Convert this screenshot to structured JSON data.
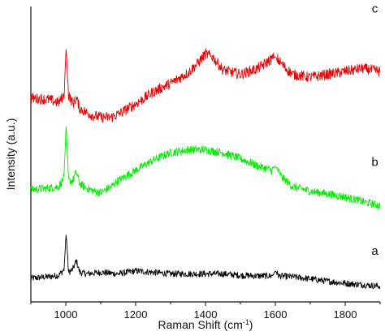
{
  "chart_data": {
    "type": "line",
    "xlabel": "Raman Shift (cm",
    "xlabel_sup": "-1",
    "xlabel_end": ")",
    "ylabel": "Intensity (a.u.)",
    "xlim": [
      900,
      1900
    ],
    "ylim": [
      0,
      100
    ],
    "x_ticks": [
      1000,
      1200,
      1400,
      1600,
      1800
    ],
    "x_tick_labels": [
      "1000",
      "1200",
      "1400",
      "1600",
      "1800"
    ],
    "y_ticks_shown": false,
    "grid": false,
    "legend": "none",
    "series": [
      {
        "name": "a",
        "color": "#000000",
        "points": [
          [
            900,
            8
          ],
          [
            950,
            8.5
          ],
          [
            980,
            9
          ],
          [
            995,
            11
          ],
          [
            1001,
            23
          ],
          [
            1008,
            10
          ],
          [
            1020,
            11
          ],
          [
            1030,
            14
          ],
          [
            1040,
            10
          ],
          [
            1060,
            9.5
          ],
          [
            1100,
            10
          ],
          [
            1150,
            9.5
          ],
          [
            1200,
            10.5
          ],
          [
            1250,
            10
          ],
          [
            1300,
            9.5
          ],
          [
            1350,
            9.5
          ],
          [
            1400,
            9.5
          ],
          [
            1450,
            9.5
          ],
          [
            1500,
            9
          ],
          [
            1550,
            8.8
          ],
          [
            1590,
            8.8
          ],
          [
            1600,
            10.5
          ],
          [
            1610,
            8.8
          ],
          [
            1650,
            8.5
          ],
          [
            1700,
            7.8
          ],
          [
            1750,
            7
          ],
          [
            1800,
            6.3
          ],
          [
            1850,
            5.8
          ],
          [
            1900,
            5.3
          ]
        ]
      },
      {
        "name": "b",
        "color": "#00ee00",
        "points": [
          [
            900,
            38
          ],
          [
            950,
            38.5
          ],
          [
            980,
            39
          ],
          [
            995,
            42
          ],
          [
            1001,
            60
          ],
          [
            1008,
            41
          ],
          [
            1020,
            41
          ],
          [
            1030,
            44
          ],
          [
            1040,
            40
          ],
          [
            1060,
            38.5
          ],
          [
            1080,
            37.5
          ],
          [
            1100,
            37
          ],
          [
            1130,
            39
          ],
          [
            1150,
            41
          ],
          [
            1200,
            44.5
          ],
          [
            1250,
            48
          ],
          [
            1300,
            50.5
          ],
          [
            1350,
            51.5
          ],
          [
            1400,
            51.5
          ],
          [
            1450,
            50.5
          ],
          [
            1500,
            48.5
          ],
          [
            1550,
            46
          ],
          [
            1590,
            44.5
          ],
          [
            1600,
            46
          ],
          [
            1620,
            42
          ],
          [
            1650,
            39
          ],
          [
            1700,
            37.5
          ],
          [
            1750,
            36.5
          ],
          [
            1800,
            35.5
          ],
          [
            1850,
            34
          ],
          [
            1900,
            32.5
          ]
        ]
      },
      {
        "name": "c",
        "color": "#ee0000",
        "points": [
          [
            900,
            69
          ],
          [
            950,
            68.5
          ],
          [
            980,
            67.5
          ],
          [
            995,
            70
          ],
          [
            1001,
            86
          ],
          [
            1008,
            70
          ],
          [
            1020,
            67
          ],
          [
            1030,
            69
          ],
          [
            1040,
            65.5
          ],
          [
            1060,
            64
          ],
          [
            1080,
            63
          ],
          [
            1100,
            62.5
          ],
          [
            1130,
            62.5
          ],
          [
            1150,
            63.5
          ],
          [
            1200,
            67
          ],
          [
            1250,
            71
          ],
          [
            1300,
            74
          ],
          [
            1350,
            77.5
          ],
          [
            1380,
            81
          ],
          [
            1400,
            84
          ],
          [
            1420,
            83
          ],
          [
            1450,
            78.5
          ],
          [
            1500,
            77
          ],
          [
            1550,
            79
          ],
          [
            1580,
            81.5
          ],
          [
            1600,
            83
          ],
          [
            1630,
            79
          ],
          [
            1650,
            77
          ],
          [
            1700,
            76
          ],
          [
            1750,
            77
          ],
          [
            1800,
            78
          ],
          [
            1850,
            79
          ],
          [
            1900,
            78
          ]
        ]
      }
    ],
    "trace_labels": [
      "a",
      "b",
      "c"
    ]
  }
}
